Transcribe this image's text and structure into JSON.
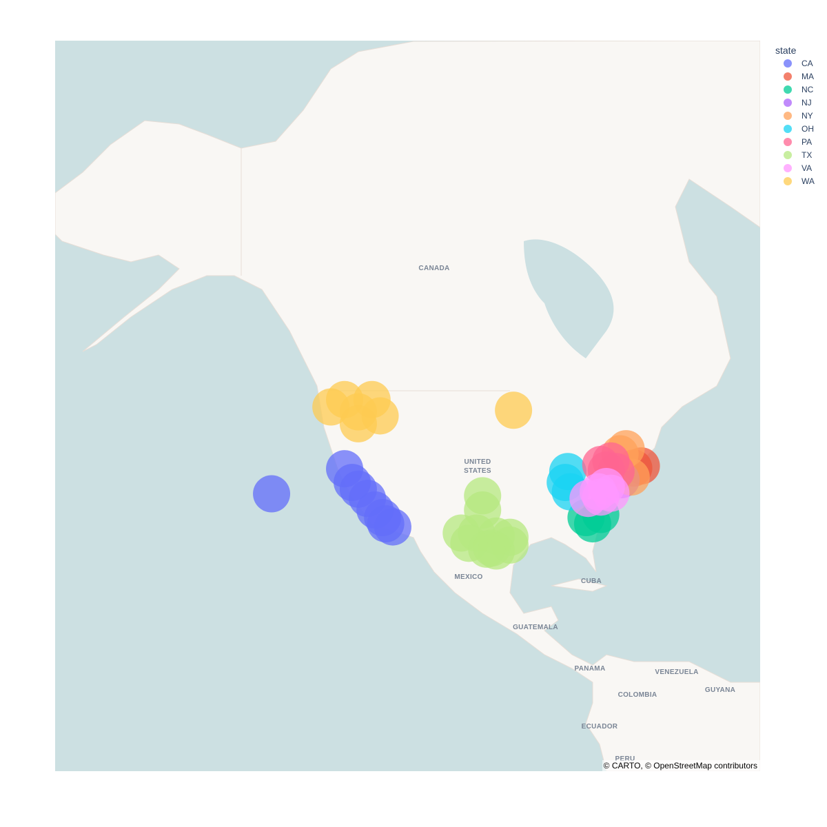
{
  "chart_data": {
    "type": "scatter_map",
    "legend_title": "state",
    "attribution": "© CARTO, © OpenStreetMap contributors",
    "map_labels": [
      [
        "CANADA"
      ],
      [
        "UNITED",
        "STATES"
      ],
      [
        "MEXICO"
      ],
      [
        "CUBA"
      ],
      [
        "GUATEMALA"
      ],
      [
        "PANAMA"
      ],
      [
        "VENEZUELA"
      ],
      [
        "COLOMBIA"
      ],
      [
        "GUYANA"
      ],
      [
        "ECUADOR"
      ],
      [
        "PERU"
      ]
    ],
    "series": [
      {
        "name": "CA",
        "color": "#636efa",
        "lon": [
          -142.4,
          -128.0,
          -126.5,
          -125.3,
          -123.5,
          -122.0,
          -120.5,
          -119.9,
          -118.5
        ],
        "lat": [
          39.7,
          43.4,
          41.4,
          40.4,
          39.0,
          37.2,
          36.0,
          35.0,
          34.5
        ]
      },
      {
        "name": "MA",
        "color": "#ef553b",
        "lon": [
          -71.0,
          -69.5
        ],
        "lat": [
          43.5,
          43.8
        ]
      },
      {
        "name": "NC",
        "color": "#00cc96",
        "lon": [
          -80.4,
          -79.1,
          -77.5
        ],
        "lat": [
          36.0,
          35.0,
          36.5
        ]
      },
      {
        "name": "NJ",
        "color": "#ab63fa",
        "lon": [
          -73.5
        ],
        "lat": [
          41.8
        ]
      },
      {
        "name": "NY",
        "color": "#ffa15a",
        "lon": [
          -73.7,
          -72.5,
          -71.5
        ],
        "lat": [
          45.5,
          46.2,
          42.2
        ]
      },
      {
        "name": "OH",
        "color": "#19d3f3",
        "lon": [
          -84.5,
          -84.0,
          -83.5
        ],
        "lat": [
          41.4,
          43.0,
          40.0
        ]
      },
      {
        "name": "PA",
        "color": "#ff6692",
        "lon": [
          -77.5,
          -75.5,
          -76.4,
          -74.5
        ],
        "lat": [
          44.0,
          44.5,
          43.2,
          43.0
        ]
      },
      {
        "name": "TX",
        "color": "#b6e880",
        "lon": [
          -100.8,
          -100.8,
          -105.0,
          -102.0,
          -98.1,
          -95.4,
          -95.4,
          -100.0,
          -98.1,
          -103.5,
          -99.0
        ],
        "lat": [
          39.4,
          37.2,
          33.5,
          33.5,
          33.0,
          32.8,
          31.5,
          30.8,
          30.5,
          31.8,
          31.0
        ]
      },
      {
        "name": "VA",
        "color": "#ff97ff",
        "lon": [
          -78.0,
          -76.4,
          -75.5,
          -80.0,
          -77.5
        ],
        "lat": [
          40.0,
          40.8,
          39.8,
          39.0,
          39.2
        ]
      },
      {
        "name": "WA",
        "color": "#fecb52",
        "lon": [
          -130.7,
          -128.0,
          -125.3,
          -122.6,
          -121.0,
          -125.3,
          -94.7
        ],
        "lat": [
          51.6,
          52.5,
          51.0,
          52.5,
          50.5,
          49.5,
          51.2
        ]
      }
    ]
  }
}
